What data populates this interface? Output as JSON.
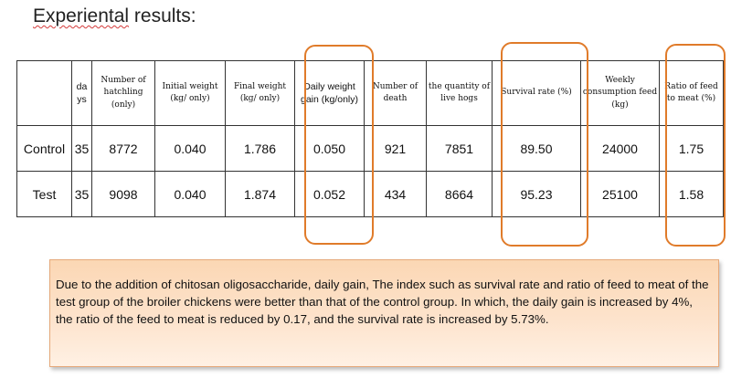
{
  "title_prefix": "Experiental",
  "title_suffix": " results:",
  "table": {
    "headers": [
      "",
      "da ys",
      "Number of hatchling (only)",
      "Initial weight (kg/ only)",
      "Final weight (kg/ only)",
      "Daily weight gain (kg/only)",
      "Number of death",
      "the quantity of live hogs",
      "Survival rate (%)",
      "Weekly consumption feed (kg)",
      "Ratio of feed to meat (%)"
    ],
    "rows": [
      [
        "Control",
        "35",
        "8772",
        "0.040",
        "1.786",
        "0.050",
        "921",
        "7851",
        "89.50",
        "24000",
        "1.75"
      ],
      [
        "Test",
        "35",
        "9098",
        "0.040",
        "1.874",
        "0.052",
        "434",
        "8664",
        "95.23",
        "25100",
        "1.58"
      ]
    ]
  },
  "highlight_color": "#e07b2a",
  "note": "Due to the addition of chitosan oligosaccharide, daily gain, The index such as survival rate and ratio of feed to meat of the test group of the broiler chickens were better than that of the control group. In which, the daily gain is increased by 4%, the ratio of the feed to meat is reduced by 0.17, and the survival rate is increased by 5.73%."
}
